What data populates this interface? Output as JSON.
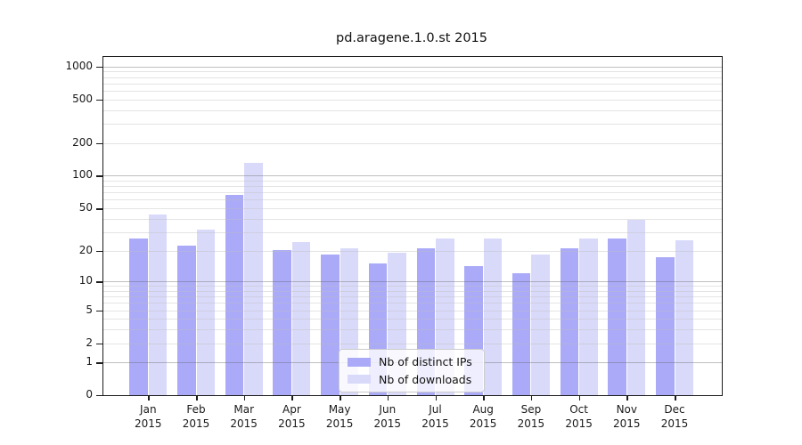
{
  "chart_data": {
    "type": "bar",
    "title": "pd.aragene.1.0.st 2015",
    "year_label": "2015",
    "categories": [
      "Jan",
      "Feb",
      "Mar",
      "Apr",
      "May",
      "Jun",
      "Jul",
      "Aug",
      "Sep",
      "Oct",
      "Nov",
      "Dec"
    ],
    "series": [
      {
        "name": "Nb of distinct IPs",
        "color": "#aaaaf8",
        "values": [
          26,
          22,
          66,
          20,
          18,
          15,
          21,
          14,
          12,
          21,
          26,
          17
        ]
      },
      {
        "name": "Nb of downloads",
        "color": "#d9d9fa",
        "values": [
          43,
          31,
          131,
          24,
          21,
          19,
          26,
          26,
          18,
          26,
          39,
          25
        ]
      }
    ],
    "yscale": "log1p",
    "y_ticks": [
      1000,
      500,
      200,
      100,
      50,
      20,
      10,
      5,
      2,
      1,
      0
    ],
    "ylim": [
      0,
      1215
    ],
    "grid": true,
    "legend_position": "lower center"
  }
}
